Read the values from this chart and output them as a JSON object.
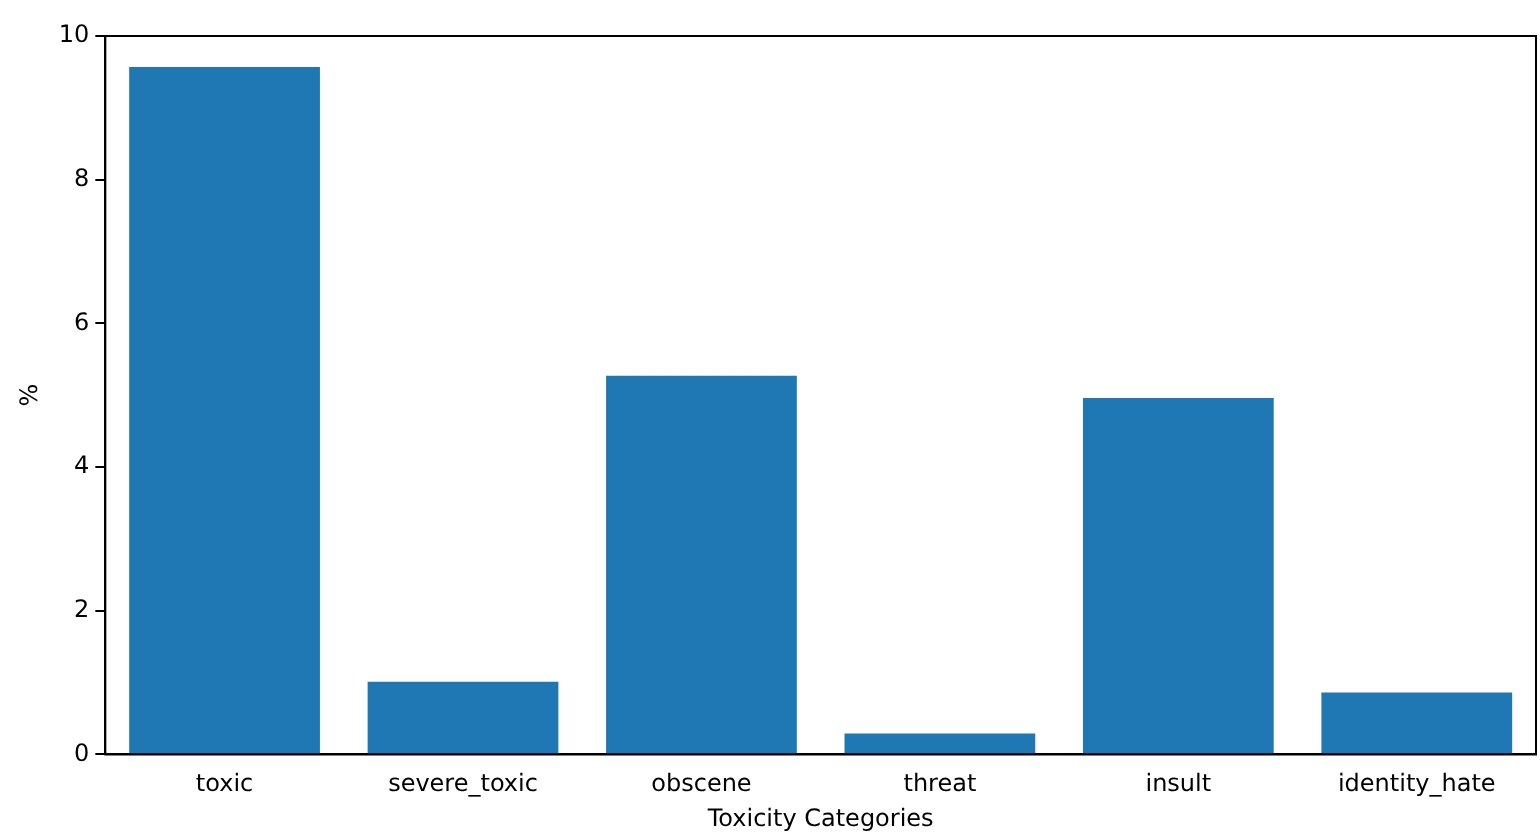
{
  "chart_data": {
    "type": "bar",
    "xlabel": "Toxicity Categories",
    "ylabel": "%",
    "categories": [
      "toxic",
      "severe_toxic",
      "obscene",
      "threat",
      "insult",
      "identity_hate"
    ],
    "values": [
      9.57,
      1.01,
      5.27,
      0.29,
      4.96,
      0.86
    ],
    "color": "#1f77b4",
    "ylim": [
      0,
      10
    ],
    "yticks": [
      0,
      2,
      4,
      6,
      8,
      10
    ],
    "grid": false,
    "legend": false
  }
}
